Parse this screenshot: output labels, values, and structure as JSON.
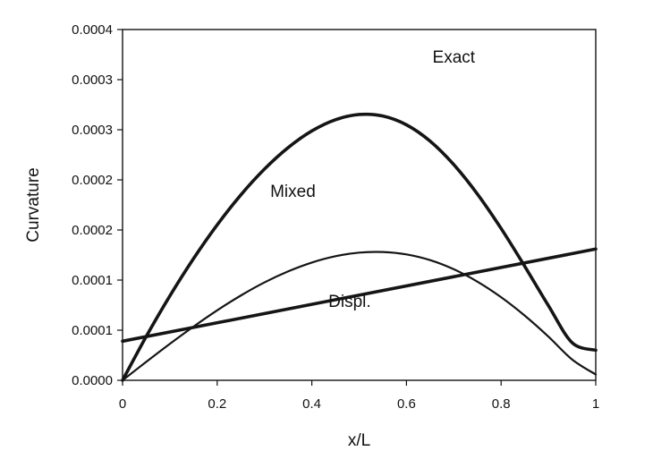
{
  "chart_data": {
    "type": "line",
    "xlabel": "x/L",
    "ylabel": "Curvature",
    "xlim": [
      0,
      1
    ],
    "ylim": [
      0,
      0.00035
    ],
    "x_ticks": [
      {
        "value": 0,
        "label": "0"
      },
      {
        "value": 0.2,
        "label": "0.2"
      },
      {
        "value": 0.4,
        "label": "0.4"
      },
      {
        "value": 0.6,
        "label": "0.6"
      },
      {
        "value": 0.8,
        "label": "0.8"
      },
      {
        "value": 1,
        "label": "1"
      }
    ],
    "y_ticks": [
      {
        "value": 0,
        "label": "0.0000"
      },
      {
        "value": 5e-05,
        "label": "0.0001"
      },
      {
        "value": 0.0001,
        "label": "0.0001"
      },
      {
        "value": 0.00015,
        "label": "0.0002"
      },
      {
        "value": 0.0002,
        "label": "0.0002"
      },
      {
        "value": 0.00025,
        "label": "0.0003"
      },
      {
        "value": 0.0003,
        "label": "0.0003"
      },
      {
        "value": 0.00035,
        "label": "0.0004"
      }
    ],
    "grid": false,
    "series": [
      {
        "name": "Exact",
        "x": [
          0,
          0.05,
          0.1,
          0.15,
          0.2,
          0.25,
          0.3,
          0.35,
          0.4,
          0.45,
          0.5,
          0.55,
          0.6,
          0.65,
          0.7,
          0.75,
          0.8,
          0.85,
          0.9,
          0.95,
          1
        ],
        "values": [
          0,
          4.37e-05,
          8.42e-05,
          0.0001214,
          0.0001551,
          0.000185,
          0.0002108,
          0.0002322,
          0.0002488,
          0.00026,
          0.0002652,
          0.0002637,
          0.0002549,
          0.0002386,
          0.0002152,
          0.0001858,
          0.0001515,
          0.0001137,
          7.45e-05,
          3.76e-05,
          3e-05
        ],
        "label_at": [
          0.7,
          0.000317
        ]
      },
      {
        "name": "Mixed",
        "x": [
          0,
          0.05,
          0.1,
          0.15,
          0.2,
          0.25,
          0.3,
          0.35,
          0.4,
          0.45,
          0.5,
          0.55,
          0.6,
          0.65,
          0.7,
          0.75,
          0.8,
          0.85,
          0.9,
          0.95,
          1
        ],
        "values": [
          0,
          1.84e-05,
          3.64e-05,
          5.36e-05,
          6.98e-05,
          8.46e-05,
          9.77e-05,
          0.0001087,
          0.0001175,
          0.0001238,
          0.0001274,
          0.000128,
          0.0001256,
          0.0001199,
          0.0001108,
          9.84e-05,
          8.29e-05,
          6.45e-05,
          4.36e-05,
          2.08e-05,
          5.8e-06
        ],
        "label_at": [
          0.36,
          0.000183
        ]
      },
      {
        "name": "Displ.",
        "x": [
          0,
          1
        ],
        "values": [
          3.9e-05,
          0.000131
        ],
        "label_at": [
          0.48,
          7.3e-05
        ]
      }
    ]
  }
}
